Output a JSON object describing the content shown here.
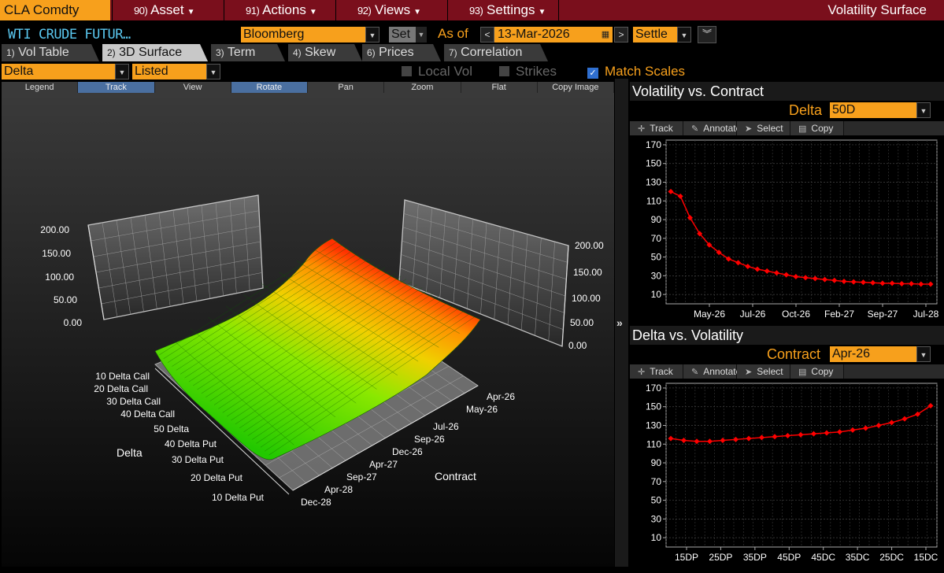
{
  "header": {
    "ticker": "CLA Comdty",
    "menus": [
      {
        "num": "90)",
        "label": "Asset"
      },
      {
        "num": "91)",
        "label": "Actions"
      },
      {
        "num": "92)",
        "label": "Views"
      },
      {
        "num": "93)",
        "label": "Settings"
      }
    ],
    "title": "Volatility Surface"
  },
  "toolbar": {
    "security_name": "WTI CRUDE FUTUR…",
    "source": "Bloomberg",
    "set_label": "Set",
    "as_of_label": "As of",
    "date": "13-Mar-2026",
    "price_type": "Settle"
  },
  "tabs": [
    {
      "num": "1)",
      "label": "Vol Table"
    },
    {
      "num": "2)",
      "label": "3D Surface"
    },
    {
      "num": "3)",
      "label": "Term"
    },
    {
      "num": "4)",
      "label": "Skew"
    },
    {
      "num": "6)",
      "label": "Prices"
    },
    {
      "num": "7)",
      "label": "Correlation"
    }
  ],
  "controls": {
    "axis_mode": "Delta",
    "contract_mode": "Listed",
    "local_vol": "Local Vol",
    "strikes": "Strikes",
    "match_scales": "Match Scales"
  },
  "chart_toolbar": [
    "Legend",
    "Track",
    "View",
    "Rotate",
    "Pan",
    "Zoom",
    "Flat",
    "Copy Image"
  ],
  "surface": {
    "z_ticks_left": [
      "200.00",
      "150.00",
      "100.00",
      "50.00",
      "0.00"
    ],
    "z_ticks_right": [
      "200.00",
      "150.00",
      "100.00",
      "50.00",
      "0.00"
    ],
    "delta_labels": [
      "10 Delta Call",
      "20 Delta Call",
      "30 Delta Call",
      "40 Delta Call",
      "50 Delta",
      "40 Delta Put",
      "30 Delta Put",
      "20 Delta Put",
      "10 Delta Put"
    ],
    "delta_axis_title": "Delta",
    "contract_labels": [
      "Apr-26",
      "May-26",
      "Jul-26",
      "Sep-26",
      "Dec-26",
      "Apr-27",
      "Sep-27",
      "Apr-28",
      "Dec-28"
    ],
    "contract_axis_title": "Contract"
  },
  "panel1": {
    "title": "Volatility vs. Contract",
    "selector_label": "Delta",
    "selector_value": "50D",
    "tools": [
      "Track",
      "Annotate",
      "Select",
      "Copy"
    ]
  },
  "panel2": {
    "title": "Delta vs. Volatility",
    "selector_label": "Contract",
    "selector_value": "Apr-26",
    "tools": [
      "Track",
      "Annotate",
      "Select",
      "Copy"
    ]
  },
  "chart_data": [
    {
      "type": "line",
      "title": "Volatility vs. Contract",
      "x_tick_labels": [
        "May-26",
        "Jul-26",
        "Oct-26",
        "Feb-27",
        "Sep-27",
        "Jul-28"
      ],
      "ylim": [
        0,
        175
      ],
      "yticks": [
        10,
        30,
        50,
        70,
        90,
        110,
        130,
        150,
        170
      ],
      "grid": true,
      "series": [
        {
          "values": [
            120,
            115,
            92,
            75,
            63,
            55,
            48,
            44,
            40,
            37,
            35,
            33,
            31,
            29,
            28,
            27,
            26,
            25,
            24,
            23.5,
            23,
            22.5,
            22,
            22,
            21.5,
            21.5,
            21,
            21
          ]
        }
      ],
      "color": "#ff0000"
    },
    {
      "type": "line",
      "title": "Delta vs. Volatility",
      "x_tick_labels": [
        "15DP",
        "25DP",
        "35DP",
        "45DP",
        "45DC",
        "35DC",
        "25DC",
        "15DC"
      ],
      "ylim": [
        0,
        175
      ],
      "yticks": [
        10,
        30,
        50,
        70,
        90,
        110,
        130,
        150,
        170
      ],
      "grid": true,
      "series": [
        {
          "values": [
            116,
            114,
            113,
            113,
            114,
            115,
            116,
            117,
            118,
            119,
            120,
            121,
            122,
            123,
            125,
            127,
            130,
            133,
            137,
            142,
            151
          ]
        }
      ],
      "color": "#ff0000"
    }
  ]
}
